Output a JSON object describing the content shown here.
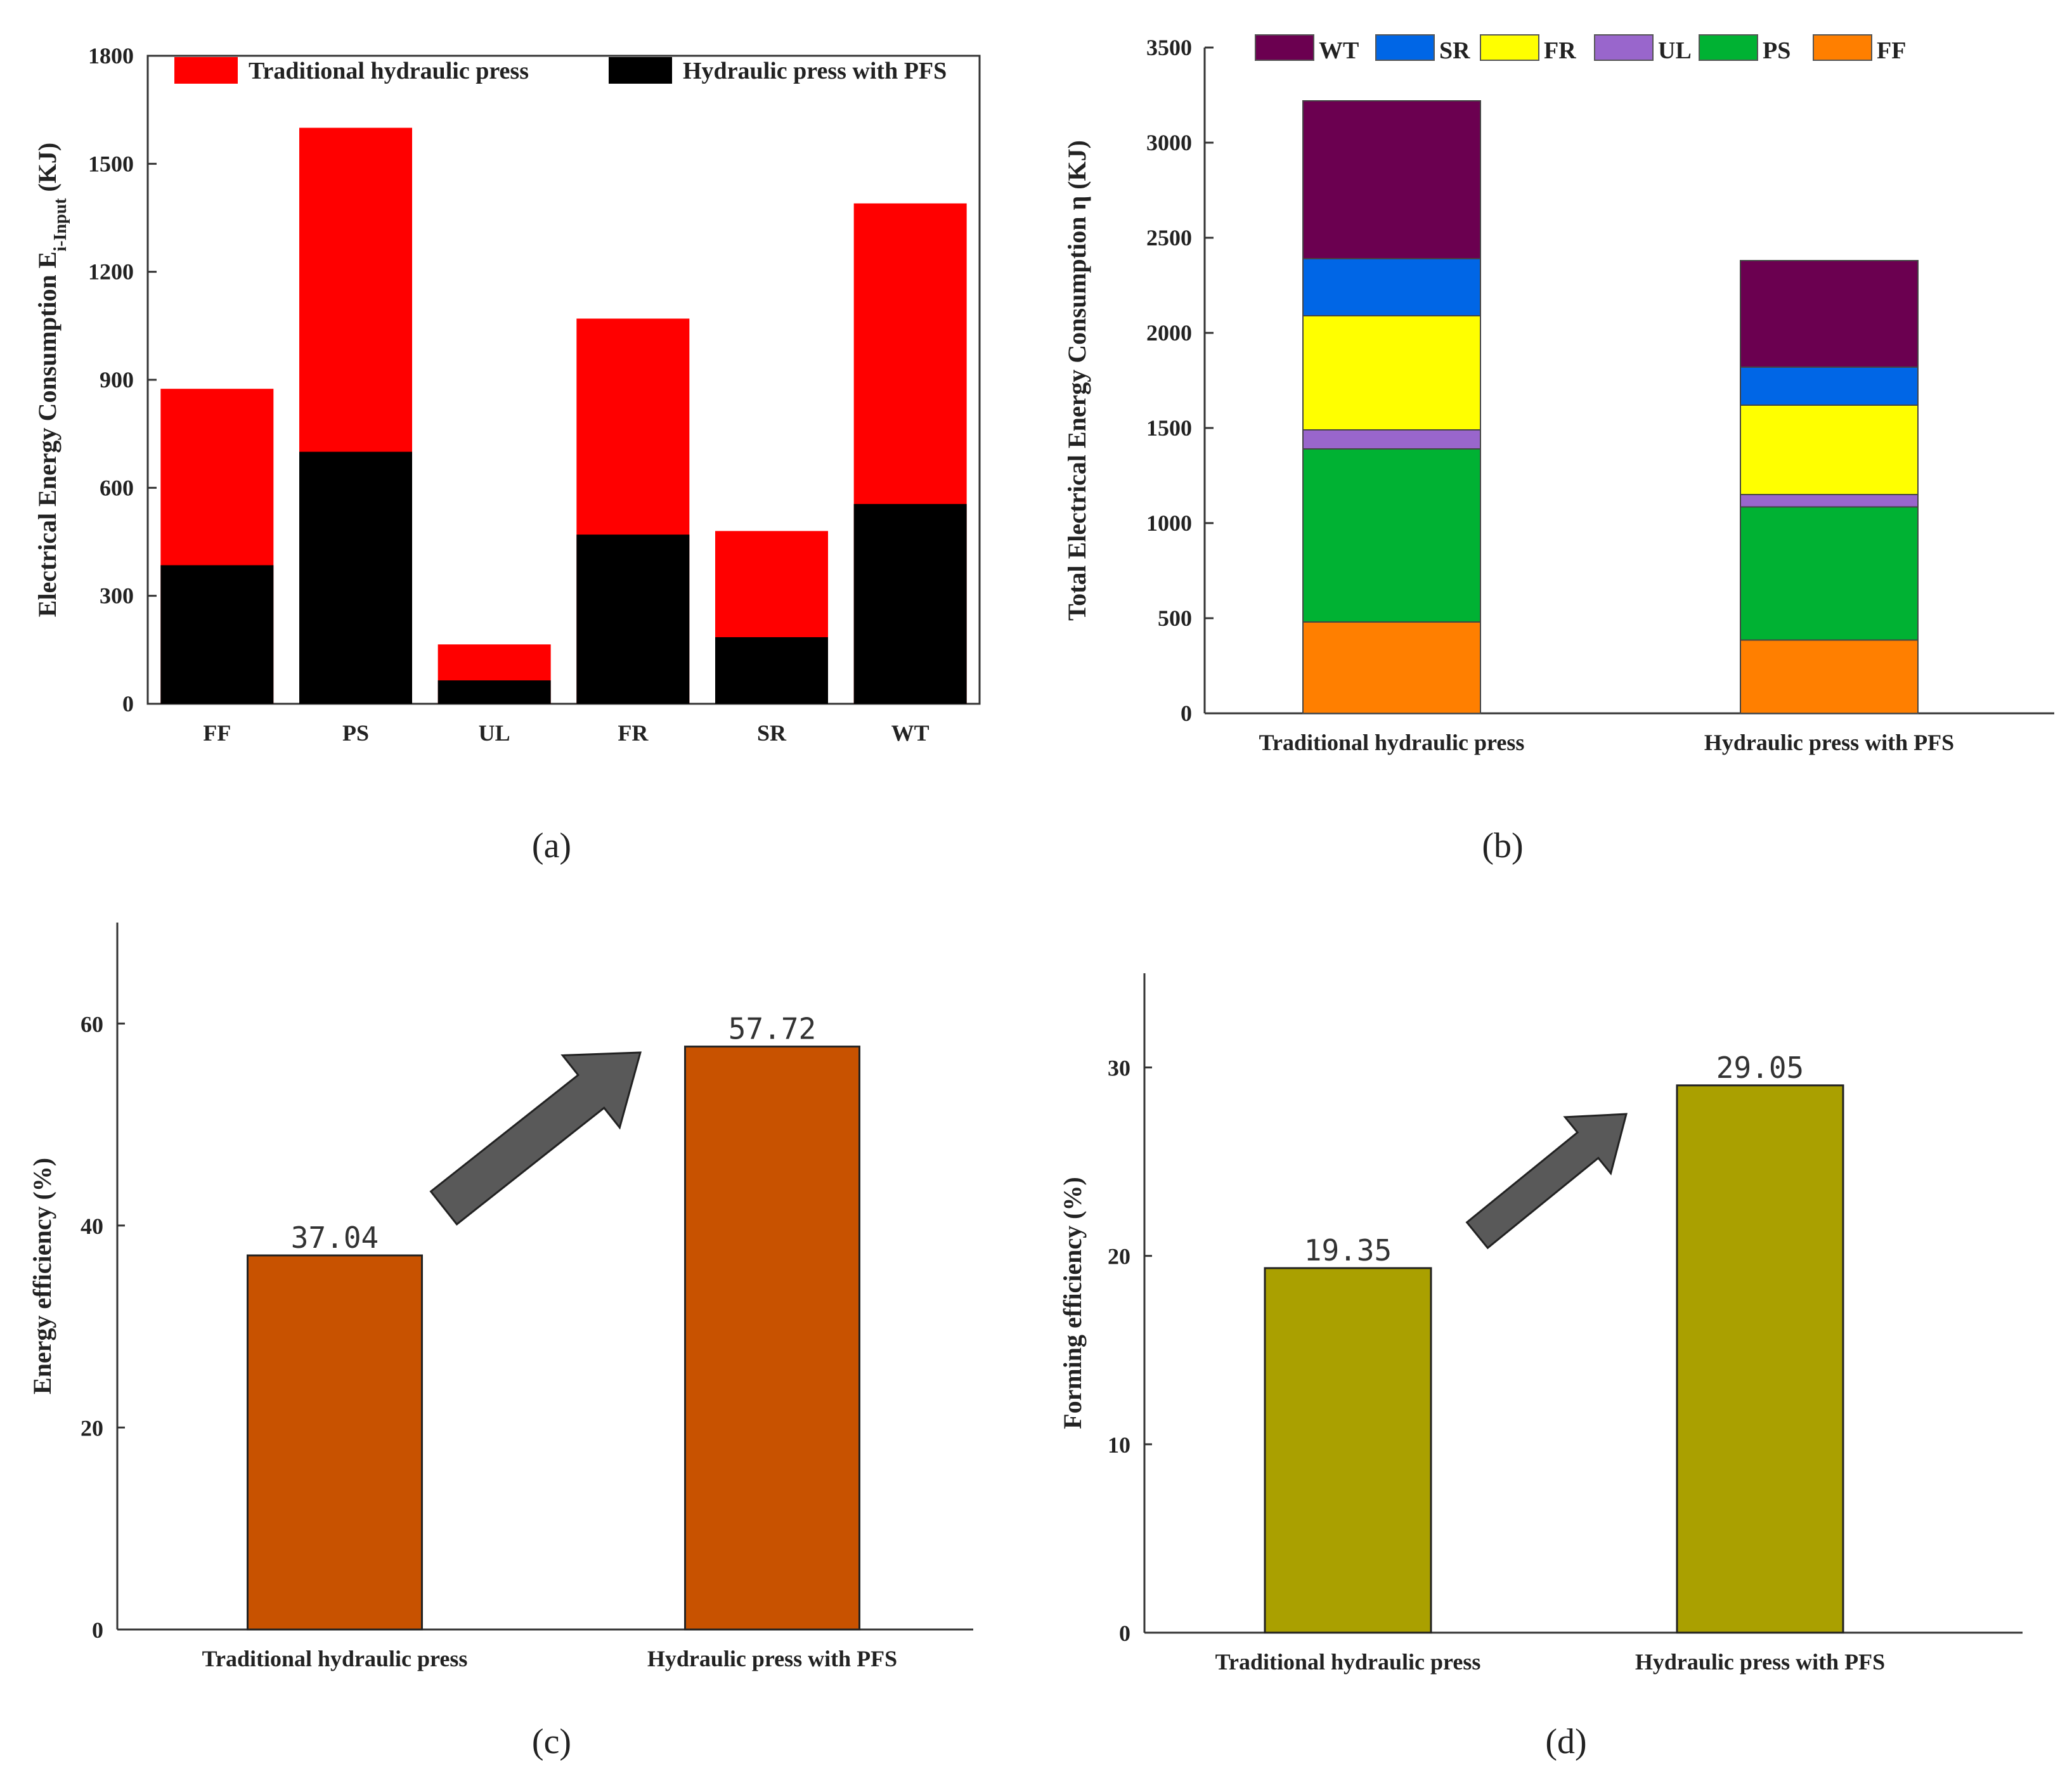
{
  "chart_data": [
    {
      "panel": "a",
      "type": "bar",
      "caption": "(a)",
      "ylabel": "Electrical Energy Consumption E",
      "ylabel_subscript": "i-Input",
      "ylabel_unit": " (KJ)",
      "categories": [
        "FF",
        "PS",
        "UL",
        "FR",
        "SR",
        "WT"
      ],
      "series": [
        {
          "name": "Traditional hydraulic press",
          "values": [
            875,
            1600,
            165,
            1070,
            480,
            1390
          ],
          "color": "#ff0000"
        },
        {
          "name": "Hydraulic press with PFS",
          "values": [
            385,
            700,
            65,
            470,
            185,
            555
          ],
          "color": "#000000"
        }
      ],
      "ylim": [
        0,
        1800
      ],
      "yticks": [
        "0",
        "300",
        "600",
        "900",
        "1200",
        "1500",
        "1800"
      ],
      "yticks_values": [
        0,
        300,
        600,
        900,
        1200,
        1500,
        1800
      ],
      "legend": "top"
    },
    {
      "panel": "b",
      "type": "bar",
      "stacked": true,
      "caption": "(b)",
      "ylabel": "Total Electrical Energy Consumption η (KJ)",
      "categories": [
        "Traditional hydraulic press",
        "Hydraulic press with PFS"
      ],
      "series": [
        {
          "name": "FF",
          "values": [
            480,
            385
          ],
          "color": "#ff7f00"
        },
        {
          "name": "PS",
          "values": [
            910,
            700
          ],
          "color": "#00b233"
        },
        {
          "name": "UL",
          "values": [
            100,
            65
          ],
          "color": "#9966cc"
        },
        {
          "name": "FR",
          "values": [
            600,
            470
          ],
          "color": "#ffff00"
        },
        {
          "name": "SR",
          "values": [
            300,
            200
          ],
          "color": "#0066e6"
        },
        {
          "name": "WT",
          "values": [
            830,
            560
          ],
          "color": "#6b0050"
        }
      ],
      "legend_order": [
        "WT",
        "SR",
        "FR",
        "UL",
        "PS",
        "FF"
      ],
      "ylim": [
        0,
        3500
      ],
      "yticks": [
        "0",
        "500",
        "1000",
        "1500",
        "2000",
        "2500",
        "3000",
        "3500"
      ],
      "yticks_values": [
        0,
        500,
        1000,
        1500,
        2000,
        2500,
        3000,
        3500
      ],
      "legend": "top"
    },
    {
      "panel": "c",
      "type": "bar",
      "caption": "(c)",
      "ylabel": "Energy efficiency (%)",
      "categories": [
        "Traditional hydraulic press",
        "Hydraulic press with PFS"
      ],
      "values": [
        37.04,
        57.72
      ],
      "data_labels": [
        "37.04",
        "57.72"
      ],
      "color": "#c85200",
      "ylim": [
        0,
        70
      ],
      "yticks": [
        "0",
        "20",
        "40",
        "60"
      ],
      "yticks_values": [
        0,
        20,
        40,
        60
      ]
    },
    {
      "panel": "d",
      "type": "bar",
      "caption": "(d)",
      "ylabel": "Forming efficiency (%)",
      "categories": [
        "Traditional hydraulic press",
        "Hydraulic press with PFS"
      ],
      "values": [
        19.35,
        29.05
      ],
      "data_labels": [
        "19.35",
        "29.05"
      ],
      "color": "#aaa000",
      "ylim": [
        0,
        35
      ],
      "yticks": [
        "0",
        "10",
        "20",
        "30"
      ],
      "yticks_values": [
        0,
        10,
        20,
        30
      ]
    }
  ]
}
